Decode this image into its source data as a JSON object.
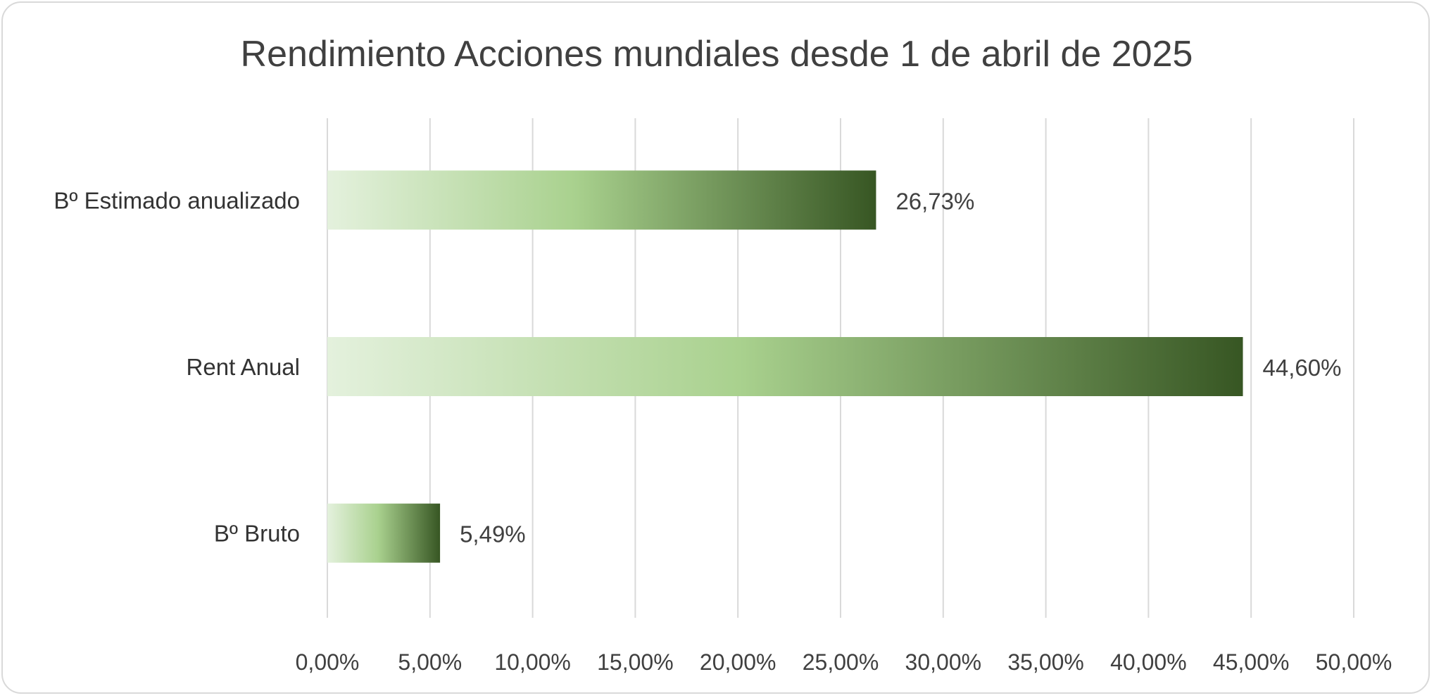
{
  "chart_data": {
    "type": "bar",
    "orientation": "horizontal",
    "title": "Rendimiento Acciones mundiales desde 1 de abril de 2025",
    "categories": [
      "Bº Estimado anualizado",
      "Rent Anual",
      "Bº Bruto"
    ],
    "values": [
      26.73,
      44.6,
      5.49
    ],
    "value_labels": [
      "26,73%",
      "44,60%",
      "5,49%"
    ],
    "xlim": [
      0,
      50
    ],
    "xticks": [
      0,
      5,
      10,
      15,
      20,
      25,
      30,
      35,
      40,
      45,
      50
    ],
    "xtick_labels": [
      "0,00%",
      "5,00%",
      "10,00%",
      "15,00%",
      "20,00%",
      "25,00%",
      "30,00%",
      "35,00%",
      "40,00%",
      "45,00%",
      "50,00%"
    ],
    "grid": true,
    "legend": "none",
    "colors": {
      "gradient_start": "#e4f1dd",
      "gradient_mid": "#a9d18e",
      "gradient_end": "#375623",
      "grid": "#d9d9d9",
      "text": "#404040"
    }
  }
}
